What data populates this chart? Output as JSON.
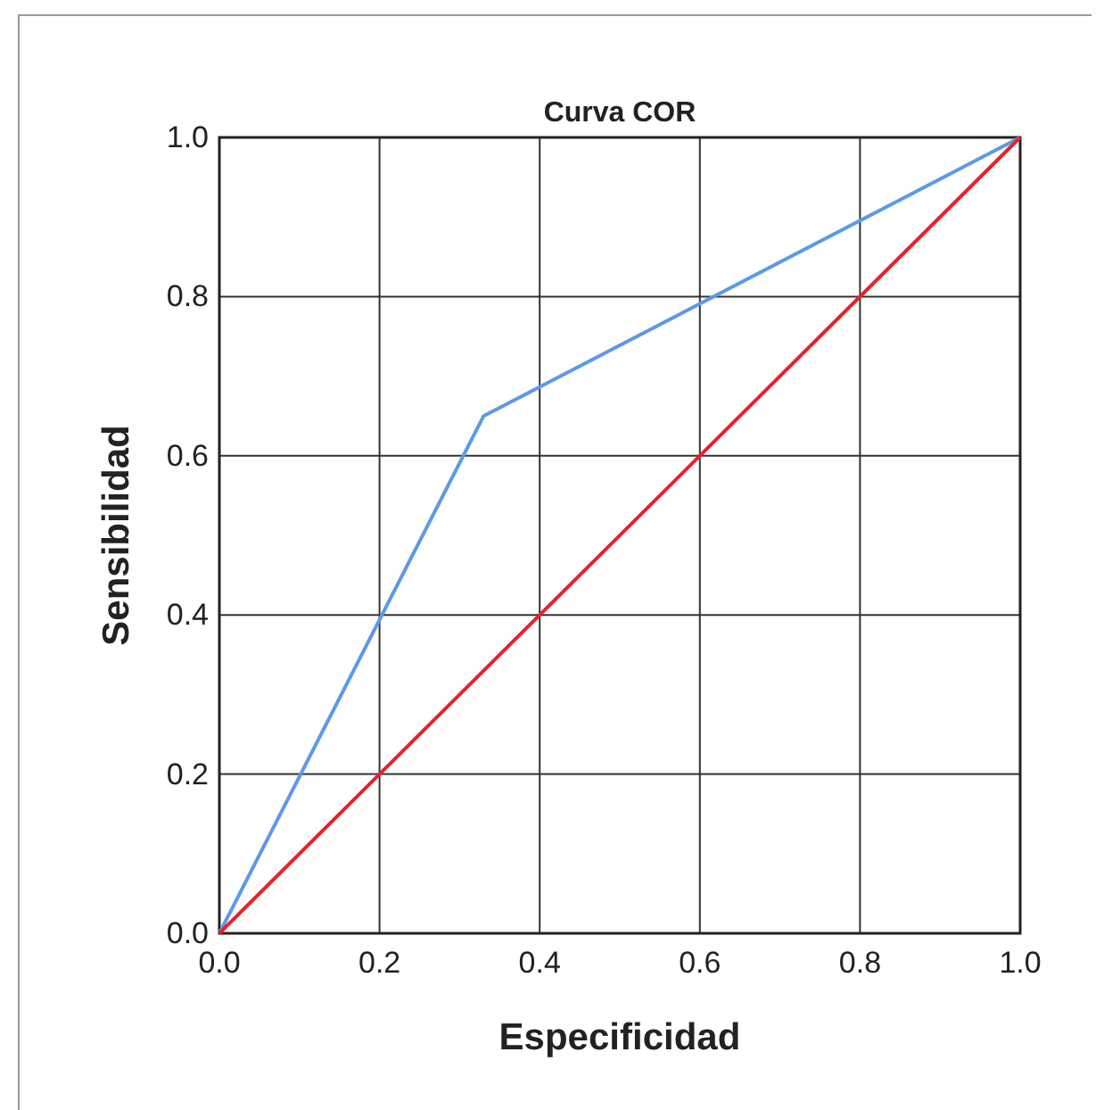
{
  "chart_data": {
    "type": "line",
    "title": "Curva COR",
    "xlabel": "Especificidad",
    "ylabel": "Sensibilidad",
    "xlim": [
      0,
      1
    ],
    "ylim": [
      0,
      1
    ],
    "xticks": [
      {
        "value": 0,
        "label": "0.0"
      },
      {
        "value": 0.2,
        "label": "0.2"
      },
      {
        "value": 0.4,
        "label": "0.4"
      },
      {
        "value": 0.6,
        "label": "0.6"
      },
      {
        "value": 0.8,
        "label": "0.8"
      },
      {
        "value": 1,
        "label": "1.0"
      }
    ],
    "yticks": [
      {
        "value": 0,
        "label": "0.0"
      },
      {
        "value": 0.2,
        "label": "0.2"
      },
      {
        "value": 0.4,
        "label": "0.4"
      },
      {
        "value": 0.6,
        "label": "0.6"
      },
      {
        "value": 0.8,
        "label": "0.8"
      },
      {
        "value": 1,
        "label": "1.0"
      }
    ],
    "grid": true,
    "marker": "none",
    "line_style": "solid",
    "series": [
      {
        "color": "#5b9ae6",
        "x": [
          0,
          0.33,
          1
        ],
        "values": [
          0,
          0.65,
          1
        ]
      },
      {
        "color": "#e8202a",
        "x": [
          0,
          1
        ],
        "values": [
          0,
          1
        ]
      }
    ]
  }
}
